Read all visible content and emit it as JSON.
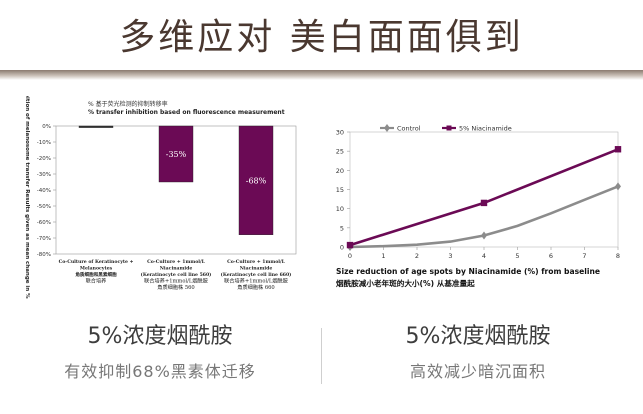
{
  "headline": "多维应对 美白面面俱到",
  "chart_data": [
    {
      "type": "bar",
      "title_cn": "% 基于荧光检测的抑制转移率",
      "title": "% transfer inhibition based on fluorescence measurement",
      "ylabel": "Inhibition of melanosome transfer Results given as mean change in %",
      "ylim": [
        -80,
        0
      ],
      "yticks": [
        0,
        -10,
        -20,
        -30,
        -40,
        -50,
        -60,
        -70,
        -80
      ],
      "ytick_labels": [
        "0%",
        "-10%",
        "-20%",
        "-30%",
        "-40%",
        "-50%",
        "-60%",
        "-70%",
        "-80%"
      ],
      "bar_color": "#6b0a55",
      "categories": [
        {
          "line1": "Co-Culture of Keratinocyte +",
          "line2": "Melanocytes",
          "line3": "角质细胞和黑素细胞",
          "line4": "联合培养",
          "line5": ""
        },
        {
          "line1": "Co-Culture + 1mmol/L",
          "line2": "Niacinamide",
          "line3": "(Keratinocyte cell line 560)",
          "line4": "联合培养+1mmol/L烟酰胺",
          "line5": "角质细胞株 560"
        },
        {
          "line1": "Co-Culture + 1mmol/L",
          "line2": "Niacinamide",
          "line3": "(Keratinocyte cell line 660)",
          "line4": "联合培养+1mmol/L烟酰胺",
          "line5": "角质细胞株 660"
        }
      ],
      "values": [
        -1,
        -35,
        -68
      ],
      "value_labels": [
        "",
        "-35%",
        "-68%"
      ]
    },
    {
      "type": "line",
      "xlabel": "Size reduction of age spots by Niacinamide (%) from baseline",
      "xlabel_cn": "烟酰胺减小老年斑的大小(%) 从基准量起",
      "xlim": [
        0,
        8
      ],
      "ylim": [
        0,
        30
      ],
      "xticks": [
        0,
        1,
        2,
        3,
        4,
        5,
        6,
        7,
        8
      ],
      "yticks": [
        0,
        5,
        10,
        15,
        20,
        25,
        30
      ],
      "series": [
        {
          "name": "Control",
          "color": "#8c8c8c",
          "marker": "diamond",
          "x": [
            0,
            1,
            2,
            3,
            4,
            5,
            6,
            7,
            8
          ],
          "y": [
            0,
            0.2,
            0.6,
            1.4,
            3,
            5.5,
            8.8,
            12.3,
            15.8
          ],
          "markers_at": [
            0,
            4,
            8
          ]
        },
        {
          "name": "5% Niacinamide",
          "color": "#6b0a55",
          "marker": "square",
          "x": [
            0,
            4,
            8
          ],
          "y": [
            0.5,
            11.5,
            25.5
          ],
          "markers_at": [
            0,
            4,
            8
          ]
        }
      ]
    }
  ],
  "captions": [
    {
      "title": "5%浓度烟酰胺",
      "sub": "有效抑制68%黑素体迁移"
    },
    {
      "title": "5%浓度烟酰胺",
      "sub": "高效减少暗沉面积"
    }
  ]
}
